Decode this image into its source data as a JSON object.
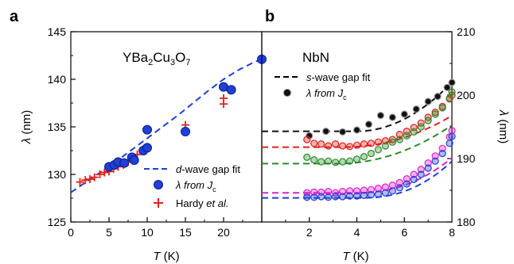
{
  "panel_a": {
    "letter": "a",
    "title_main": "YBa",
    "title_sub1": "2",
    "title_mid1": "Cu",
    "title_sub2": "3",
    "title_mid2": "O",
    "title_sub3": "7",
    "ylabel_sym": "λ",
    "ylabel_unit": "(nm)",
    "xlabel_sym": "T",
    "xlabel_unit": "(K)",
    "legend": {
      "fit_prefix": "d",
      "fit_suffix": "-wave gap fit",
      "jc_prefix": "λ from ",
      "jc_sym": "J",
      "jc_sub": "c",
      "hardy_prefix": "Hardy ",
      "hardy_italic": "et al."
    }
  },
  "panel_b": {
    "letter": "b",
    "title": "NbN",
    "ylabel_sym": "λ",
    "ylabel_unit": "(nm)",
    "xlabel_sym": "T",
    "xlabel_unit": "(K)",
    "legend": {
      "fit_prefix": "s",
      "fit_suffix": "-wave gap fit",
      "jc_prefix": "λ from ",
      "jc_sym": "J",
      "jc_sub": "c"
    }
  },
  "chart_data": [
    {
      "type": "scatter",
      "panel": "a",
      "xlabel": "T (K)",
      "ylabel": "λ (nm)",
      "xlim": [
        0,
        25
      ],
      "ylim": [
        125,
        145
      ],
      "xticks": [
        0,
        5,
        10,
        15,
        20
      ],
      "xtick_labels": [
        "0",
        "5",
        "10",
        "15",
        "20"
      ],
      "yticks": [
        125,
        130,
        135,
        140,
        145
      ],
      "series": [
        {
          "name": "d-wave gap fit",
          "style": "dashed-line",
          "color": "#1f3fd6",
          "x": [
            0,
            2,
            4,
            6,
            8,
            10,
            12,
            14,
            16,
            18,
            20,
            22,
            24,
            25
          ],
          "y": [
            128.1,
            129.2,
            130.3,
            131.4,
            132.6,
            133.8,
            135.0,
            136.2,
            137.5,
            138.8,
            140.0,
            141.0,
            141.8,
            142.1
          ]
        },
        {
          "name": "λ from Jc",
          "style": "filled-circle",
          "color": "#1f3fd6",
          "x": [
            5,
            5.7,
            6.2,
            7.0,
            8.0,
            8.3,
            9.5,
            10.0,
            10.0,
            15.0,
            20.0,
            21.0,
            25.0
          ],
          "y": [
            130.8,
            131.0,
            131.3,
            131.2,
            131.8,
            131.5,
            132.5,
            134.7,
            132.8,
            134.5,
            139.2,
            138.9,
            142.1
          ]
        },
        {
          "name": "Hardy et al.",
          "style": "plus",
          "color": "#e0201b",
          "x": [
            1.2,
            1.9,
            2.5,
            3.1,
            3.8,
            4.4,
            5.0,
            5.6,
            6.2,
            6.9,
            7.5,
            8.1,
            8.7,
            9.4,
            10.0,
            15.0,
            20.0,
            20.0
          ],
          "y": [
            129.2,
            129.4,
            129.5,
            129.7,
            130.0,
            130.2,
            130.3,
            130.6,
            130.8,
            131.0,
            131.3,
            131.6,
            132.1,
            132.6,
            132.9,
            135.2,
            137.4,
            138.0
          ]
        }
      ]
    },
    {
      "type": "scatter",
      "panel": "b",
      "xlabel": "T (K)",
      "ylabel": "λ (nm)",
      "xlim": [
        0,
        8
      ],
      "ylim": [
        180,
        210
      ],
      "xticks": [
        2,
        4,
        6,
        8
      ],
      "xtick_labels": [
        "2",
        "4",
        "6",
        "8"
      ],
      "yticks": [
        180,
        190,
        200,
        210
      ],
      "series": [
        {
          "name": "λ from Jc",
          "style": "filled-circle",
          "color": "#111111",
          "fit_baseline": 194.3,
          "fit_amp": 14.0,
          "fit_t0": 4.0,
          "fit_curv": 2.0,
          "x": [
            2.0,
            2.7,
            3.4,
            4.0,
            4.5,
            5.0,
            5.5,
            6.0,
            6.5,
            7.0,
            7.4,
            7.8,
            8.0
          ],
          "y": [
            193.6,
            194.3,
            194.2,
            194.5,
            195.4,
            196.8,
            196.5,
            197.0,
            197.8,
            199.0,
            199.8,
            201.2,
            202.0
          ]
        },
        {
          "name": "red",
          "style": "open-circle",
          "color": "#e0201b",
          "fit_baseline": 191.8,
          "fit_amp": 9.0,
          "fit_t0": 3.5,
          "fit_curv": 2.0,
          "x": [
            1.9,
            2.2,
            2.5,
            2.8,
            3.1,
            3.4,
            3.7,
            4.0,
            4.3,
            4.6,
            4.9,
            5.2,
            5.5,
            5.8,
            6.1,
            6.4,
            6.7,
            7.0,
            7.3,
            7.6,
            7.9,
            8.0
          ],
          "y": [
            193.0,
            192.4,
            192.3,
            192.0,
            192.3,
            192.0,
            191.9,
            192.1,
            192.3,
            192.4,
            192.6,
            192.8,
            193.0,
            193.8,
            194.3,
            194.9,
            195.6,
            196.5,
            197.3,
            198.2,
            199.4,
            200.0
          ]
        },
        {
          "name": "green",
          "style": "open-circle",
          "color": "#2a8a2a",
          "fit_baseline": 189.2,
          "fit_amp": 11.0,
          "fit_t0": 3.2,
          "fit_curv": 2.0,
          "x": [
            1.9,
            2.2,
            2.5,
            2.8,
            3.1,
            3.4,
            3.7,
            4.0,
            4.3,
            4.6,
            4.9,
            5.2,
            5.5,
            5.8,
            6.1,
            6.4,
            6.7,
            7.0,
            7.3,
            7.6,
            7.9,
            8.0
          ],
          "y": [
            190.2,
            189.8,
            189.5,
            189.6,
            189.4,
            189.5,
            189.6,
            189.9,
            190.3,
            190.8,
            191.4,
            192.0,
            192.6,
            193.0,
            193.6,
            194.2,
            195.0,
            196.0,
            197.0,
            198.0,
            199.5,
            200.5
          ]
        },
        {
          "name": "magenta",
          "style": "open-circle",
          "color": "#e020c8",
          "fit_baseline": 184.6,
          "fit_amp": 10.0,
          "fit_t0": 4.0,
          "fit_curv": 2.2,
          "x": [
            1.9,
            2.2,
            2.5,
            2.8,
            3.1,
            3.4,
            3.7,
            4.0,
            4.3,
            4.6,
            4.9,
            5.2,
            5.5,
            5.8,
            6.1,
            6.4,
            6.7,
            7.0,
            7.3,
            7.6,
            7.9,
            8.0
          ],
          "y": [
            184.6,
            184.7,
            184.7,
            184.8,
            184.6,
            184.8,
            184.9,
            184.9,
            185.0,
            185.1,
            185.3,
            185.5,
            185.8,
            186.2,
            186.8,
            187.5,
            188.3,
            189.3,
            190.4,
            191.6,
            193.4,
            194.4
          ]
        },
        {
          "name": "blue",
          "style": "open-circle",
          "color": "#1f3fd6",
          "fit_baseline": 183.8,
          "fit_amp": 10.5,
          "fit_t0": 4.2,
          "fit_curv": 2.3,
          "x": [
            1.9,
            2.2,
            2.5,
            2.8,
            3.1,
            3.4,
            3.7,
            4.0,
            4.3,
            4.6,
            4.9,
            5.2,
            5.5,
            5.8,
            6.1,
            6.4,
            6.7,
            7.0,
            7.3,
            7.6,
            7.9,
            8.0
          ],
          "y": [
            183.9,
            183.9,
            184.0,
            183.9,
            184.0,
            184.0,
            184.1,
            184.1,
            184.2,
            184.3,
            184.4,
            184.6,
            184.9,
            185.4,
            186.0,
            186.7,
            187.5,
            188.5,
            189.6,
            190.8,
            192.4,
            193.5
          ]
        }
      ]
    }
  ]
}
